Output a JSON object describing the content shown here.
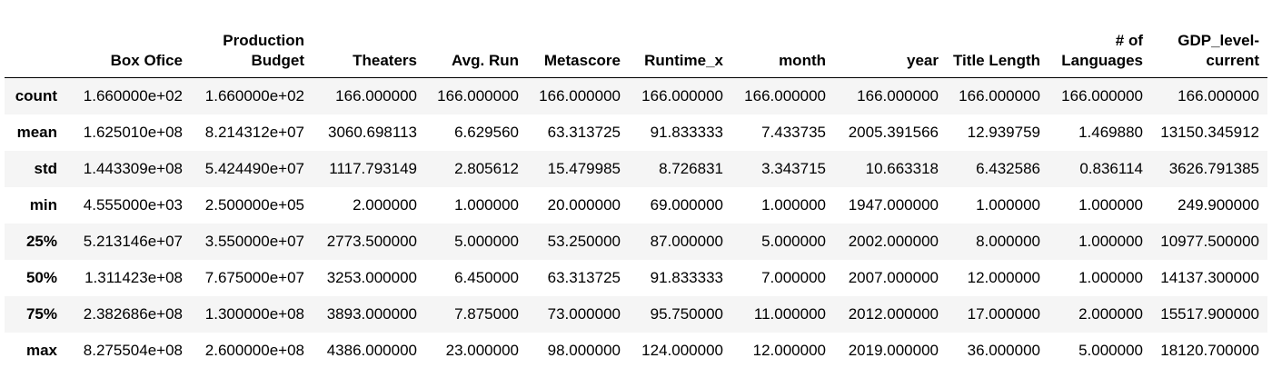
{
  "table": {
    "columns": [
      {
        "label": "",
        "width": 67
      },
      {
        "label": "Box Ofice",
        "width": 138
      },
      {
        "label": "Production Budget",
        "width": 134
      },
      {
        "label": "Theaters",
        "width": 124
      },
      {
        "label": "Avg. Run",
        "width": 112
      },
      {
        "label": "Metascore",
        "width": 112
      },
      {
        "label": "Runtime_x",
        "width": 113
      },
      {
        "label": "month",
        "width": 113
      },
      {
        "label": "year",
        "width": 124
      },
      {
        "label": "Title Length",
        "width": 112
      },
      {
        "label": "# of Languages",
        "width": 113
      },
      {
        "label": "GDP_level-current",
        "width": 128
      }
    ],
    "rows": [
      {
        "label": "count",
        "cells": [
          "1.660000e+02",
          "1.660000e+02",
          "166.000000",
          "166.000000",
          "166.000000",
          "166.000000",
          "166.000000",
          "166.000000",
          "166.000000",
          "166.000000",
          "166.000000"
        ]
      },
      {
        "label": "mean",
        "cells": [
          "1.625010e+08",
          "8.214312e+07",
          "3060.698113",
          "6.629560",
          "63.313725",
          "91.833333",
          "7.433735",
          "2005.391566",
          "12.939759",
          "1.469880",
          "13150.345912"
        ]
      },
      {
        "label": "std",
        "cells": [
          "1.443309e+08",
          "5.424490e+07",
          "1117.793149",
          "2.805612",
          "15.479985",
          "8.726831",
          "3.343715",
          "10.663318",
          "6.432586",
          "0.836114",
          "3626.791385"
        ]
      },
      {
        "label": "min",
        "cells": [
          "4.555000e+03",
          "2.500000e+05",
          "2.000000",
          "1.000000",
          "20.000000",
          "69.000000",
          "1.000000",
          "1947.000000",
          "1.000000",
          "1.000000",
          "249.900000"
        ]
      },
      {
        "label": "25%",
        "cells": [
          "5.213146e+07",
          "3.550000e+07",
          "2773.500000",
          "5.000000",
          "53.250000",
          "87.000000",
          "5.000000",
          "2002.000000",
          "8.000000",
          "1.000000",
          "10977.500000"
        ]
      },
      {
        "label": "50%",
        "cells": [
          "1.311423e+08",
          "7.675000e+07",
          "3253.000000",
          "6.450000",
          "63.313725",
          "91.833333",
          "7.000000",
          "2007.000000",
          "12.000000",
          "1.000000",
          "14137.300000"
        ]
      },
      {
        "label": "75%",
        "cells": [
          "2.382686e+08",
          "1.300000e+08",
          "3893.000000",
          "7.875000",
          "73.000000",
          "95.750000",
          "11.000000",
          "2012.000000",
          "17.000000",
          "2.000000",
          "15517.900000"
        ]
      },
      {
        "label": "max",
        "cells": [
          "8.275504e+08",
          "2.600000e+08",
          "4386.000000",
          "23.000000",
          "98.000000",
          "124.000000",
          "12.000000",
          "2019.000000",
          "36.000000",
          "5.000000",
          "18120.700000"
        ]
      }
    ]
  }
}
